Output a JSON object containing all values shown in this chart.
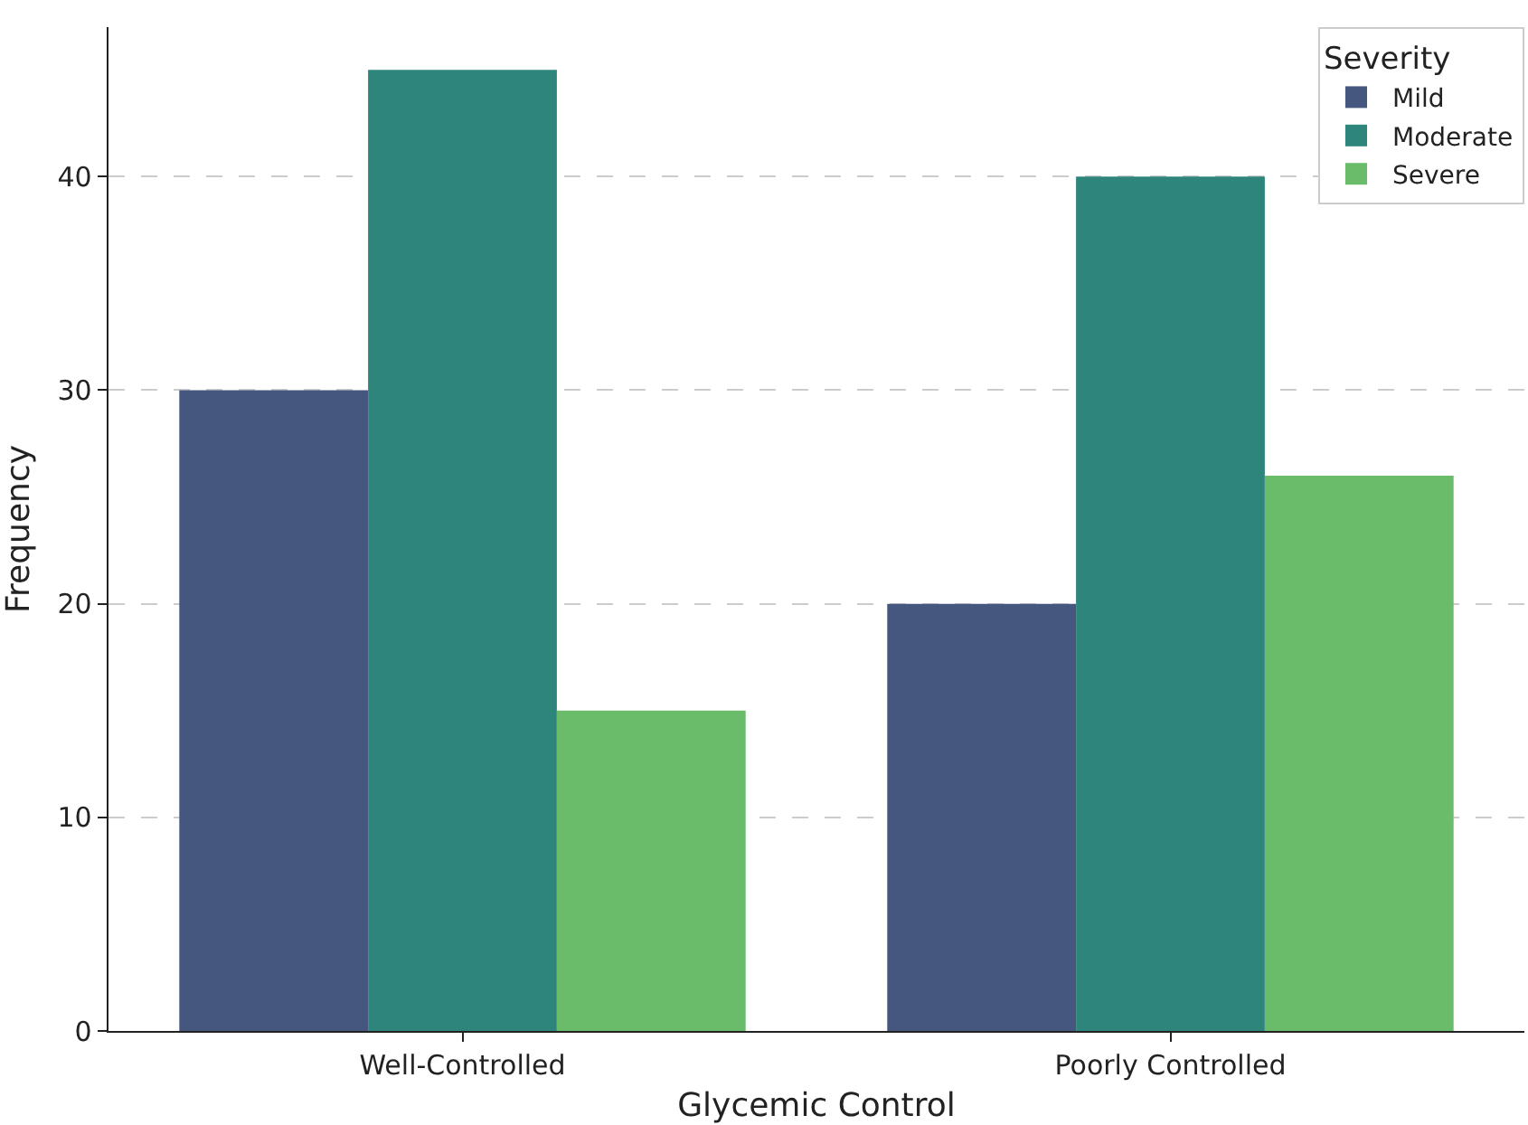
{
  "chart_data": {
    "type": "bar",
    "xlabel": "Glycemic Control",
    "ylabel": "Frequency",
    "legend_title": "Severity",
    "categories": [
      "Well-Controlled",
      "Poorly Controlled"
    ],
    "series": [
      {
        "name": "Mild",
        "color": "#46577f",
        "values": [
          30,
          20
        ]
      },
      {
        "name": "Moderate",
        "color": "#2e857c",
        "values": [
          45,
          40
        ]
      },
      {
        "name": "Severe",
        "color": "#6abc6b",
        "values": [
          15,
          26
        ]
      }
    ],
    "ylim": [
      0,
      47
    ],
    "yticks": [
      0,
      10,
      20,
      30,
      40
    ],
    "grid": "y",
    "legend": "top right"
  }
}
